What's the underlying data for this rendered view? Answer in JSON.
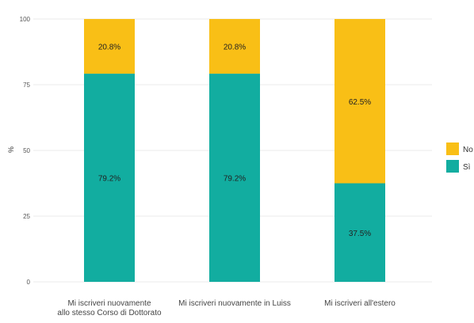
{
  "chart_data": {
    "type": "bar",
    "stacked": true,
    "ylabel": "%",
    "xlabel": "",
    "ylim": [
      0,
      100
    ],
    "yticks": [
      0,
      25,
      50,
      75,
      100
    ],
    "grid": true,
    "legend_position": "right",
    "categories": [
      [
        "Mi iscriveri nuovamente",
        "allo stesso Corso di Dottorato"
      ],
      [
        "Mi iscriveri nuovamente in Luiss"
      ],
      [
        "Mi iscriveri all'estero"
      ]
    ],
    "series": [
      {
        "name": "Sì",
        "color": "#12ada0",
        "values": [
          79.2,
          79.2,
          37.5
        ],
        "labels": [
          "79.2%",
          "79.2%",
          "37.5%"
        ]
      },
      {
        "name": "No",
        "color": "#f9bf16",
        "values": [
          20.8,
          20.8,
          62.5
        ],
        "labels": [
          "20.8%",
          "20.8%",
          "62.5%"
        ]
      }
    ],
    "legend_order": [
      "No",
      "Sì"
    ]
  }
}
